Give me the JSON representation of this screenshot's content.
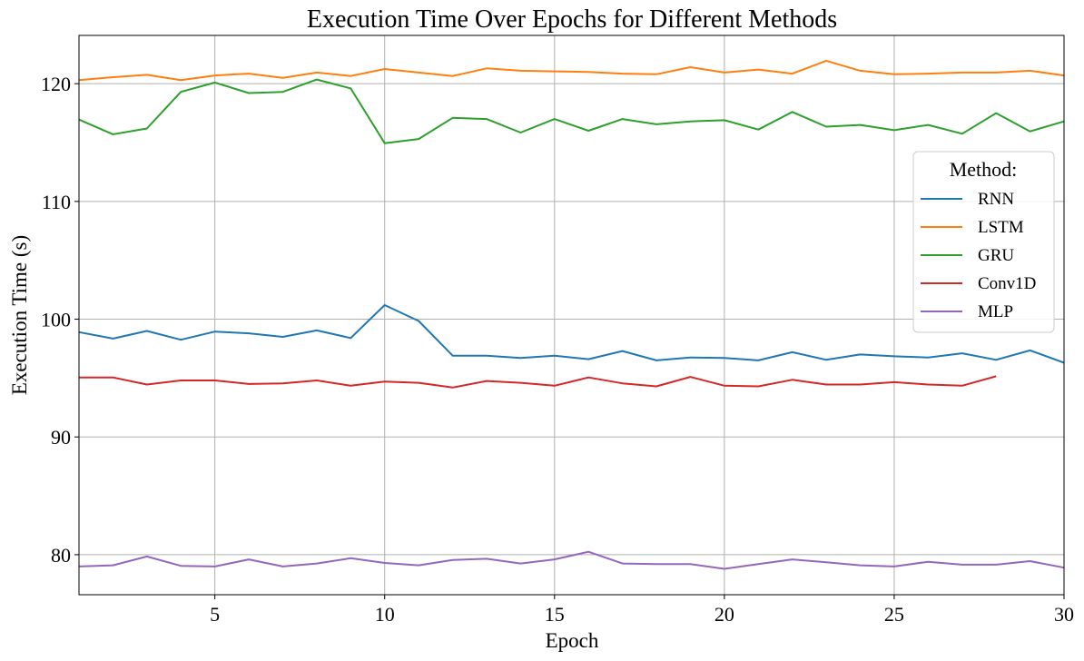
{
  "chart_data": {
    "type": "line",
    "title": "Execution Time Over Epochs for Different Methods",
    "xlabel": "Epoch",
    "ylabel": "Execution Time (s)",
    "xlim": [
      1,
      30
    ],
    "ylim": [
      76.6,
      124.1
    ],
    "x_ticks": [
      5,
      10,
      15,
      20,
      25,
      30
    ],
    "y_ticks": [
      80,
      90,
      100,
      110,
      120
    ],
    "grid": true,
    "legend": {
      "title": "Method:",
      "placement": "right"
    },
    "series": [
      {
        "name": "RNN",
        "color": "#1f77b4",
        "x": [
          1,
          2,
          3,
          4,
          5,
          6,
          7,
          8,
          9,
          10,
          11,
          12,
          13,
          14,
          15,
          16,
          17,
          18,
          19,
          20,
          21,
          22,
          23,
          24,
          25,
          26,
          27,
          28,
          29,
          30
        ],
        "values": [
          98.9,
          98.35,
          99.0,
          98.25,
          98.95,
          98.8,
          98.5,
          99.05,
          98.4,
          101.2,
          99.85,
          96.9,
          96.9,
          96.7,
          96.9,
          96.6,
          97.3,
          96.5,
          96.75,
          96.7,
          96.5,
          97.2,
          96.55,
          97.0,
          96.85,
          96.75,
          97.1,
          96.55,
          97.35,
          96.3
        ]
      },
      {
        "name": "LSTM",
        "color": "#ff7f0e",
        "x": [
          1,
          2,
          3,
          4,
          5,
          6,
          7,
          8,
          9,
          10,
          11,
          12,
          13,
          14,
          15,
          16,
          17,
          18,
          19,
          20,
          21,
          22,
          23,
          24,
          25,
          26,
          27,
          28,
          29,
          30
        ],
        "values": [
          120.3,
          120.55,
          120.75,
          120.3,
          120.7,
          120.85,
          120.5,
          120.95,
          120.65,
          121.25,
          120.95,
          120.65,
          121.3,
          121.1,
          121.05,
          121.0,
          120.85,
          120.8,
          121.4,
          120.95,
          121.2,
          120.85,
          121.95,
          121.1,
          120.8,
          120.85,
          120.95,
          120.95,
          121.1,
          120.7
        ]
      },
      {
        "name": "GRU",
        "color": "#2ca02c",
        "x": [
          1,
          2,
          3,
          4,
          5,
          6,
          7,
          8,
          9,
          10,
          11,
          12,
          13,
          14,
          15,
          16,
          17,
          18,
          19,
          20,
          21,
          22,
          23,
          24,
          25,
          26,
          27,
          28,
          29,
          30
        ],
        "values": [
          116.95,
          115.7,
          116.2,
          119.3,
          120.1,
          119.2,
          119.3,
          120.35,
          119.6,
          114.95,
          115.3,
          117.1,
          117.0,
          115.85,
          117.0,
          116.0,
          117.0,
          116.55,
          116.8,
          116.9,
          116.1,
          117.6,
          116.35,
          116.5,
          116.05,
          116.5,
          115.75,
          117.5,
          115.95,
          116.8
        ]
      },
      {
        "name": "Conv1D",
        "color": "#d62728",
        "x": [
          1,
          2,
          3,
          4,
          5,
          6,
          7,
          8,
          9,
          10,
          11,
          12,
          13,
          14,
          15,
          16,
          17,
          18,
          19,
          20,
          21,
          22,
          23,
          24,
          25,
          26,
          27,
          28
        ],
        "values": [
          95.05,
          95.05,
          94.45,
          94.8,
          94.8,
          94.5,
          94.55,
          94.8,
          94.35,
          94.7,
          94.6,
          94.2,
          94.75,
          94.6,
          94.35,
          95.05,
          94.55,
          94.3,
          95.1,
          94.35,
          94.3,
          94.85,
          94.45,
          94.45,
          94.65,
          94.45,
          94.35,
          95.15
        ]
      },
      {
        "name": "MLP",
        "color": "#9467bd",
        "x": [
          1,
          2,
          3,
          4,
          5,
          6,
          7,
          8,
          9,
          10,
          11,
          12,
          13,
          14,
          15,
          16,
          17,
          18,
          19,
          20,
          21,
          22,
          23,
          24,
          25,
          26,
          27,
          28,
          29,
          30
        ],
        "values": [
          79.0,
          79.1,
          79.85,
          79.05,
          79.0,
          79.6,
          79.0,
          79.25,
          79.7,
          79.3,
          79.1,
          79.55,
          79.65,
          79.25,
          79.6,
          80.25,
          79.25,
          79.2,
          79.2,
          78.8,
          79.2,
          79.6,
          79.35,
          79.1,
          79.0,
          79.4,
          79.15,
          79.15,
          79.45,
          78.9
        ]
      }
    ]
  }
}
